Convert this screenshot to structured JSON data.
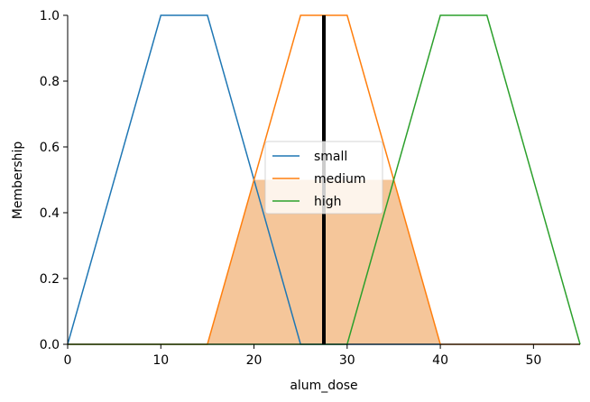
{
  "chart_data": {
    "type": "line",
    "title": "",
    "xlabel": "alum_dose",
    "ylabel": "Membership",
    "xlim": [
      0,
      55
    ],
    "ylim": [
      0,
      1.0
    ],
    "xticks": [
      "0",
      "10",
      "20",
      "30",
      "40",
      "50"
    ],
    "yticks": [
      "0.0",
      "0.2",
      "0.4",
      "0.6",
      "0.8",
      "1.0"
    ],
    "grid": false,
    "legend_position": "center",
    "series": [
      {
        "name": "small",
        "color": "#1f77b4",
        "points": [
          [
            0,
            0
          ],
          [
            10,
            1
          ],
          [
            15,
            1
          ],
          [
            25,
            0
          ],
          [
            55,
            0
          ]
        ]
      },
      {
        "name": "medium",
        "color": "#ff7f0e",
        "points": [
          [
            0,
            0
          ],
          [
            15,
            0
          ],
          [
            25,
            1
          ],
          [
            30,
            1
          ],
          [
            40,
            0
          ],
          [
            55,
            0
          ]
        ]
      },
      {
        "name": "high",
        "color": "#2ca02c",
        "points": [
          [
            0,
            0
          ],
          [
            30,
            0
          ],
          [
            40,
            1
          ],
          [
            45,
            1
          ],
          [
            55,
            0
          ]
        ]
      }
    ],
    "fill": {
      "series": "medium",
      "color": "#f5c69a",
      "points": [
        [
          15,
          0
        ],
        [
          20,
          0.5
        ],
        [
          35,
          0.5
        ],
        [
          40,
          0
        ],
        [
          55,
          0
        ]
      ]
    },
    "vline": {
      "x": 27.5,
      "ymin": 0,
      "ymax": 1.0,
      "color": "#000000"
    }
  }
}
